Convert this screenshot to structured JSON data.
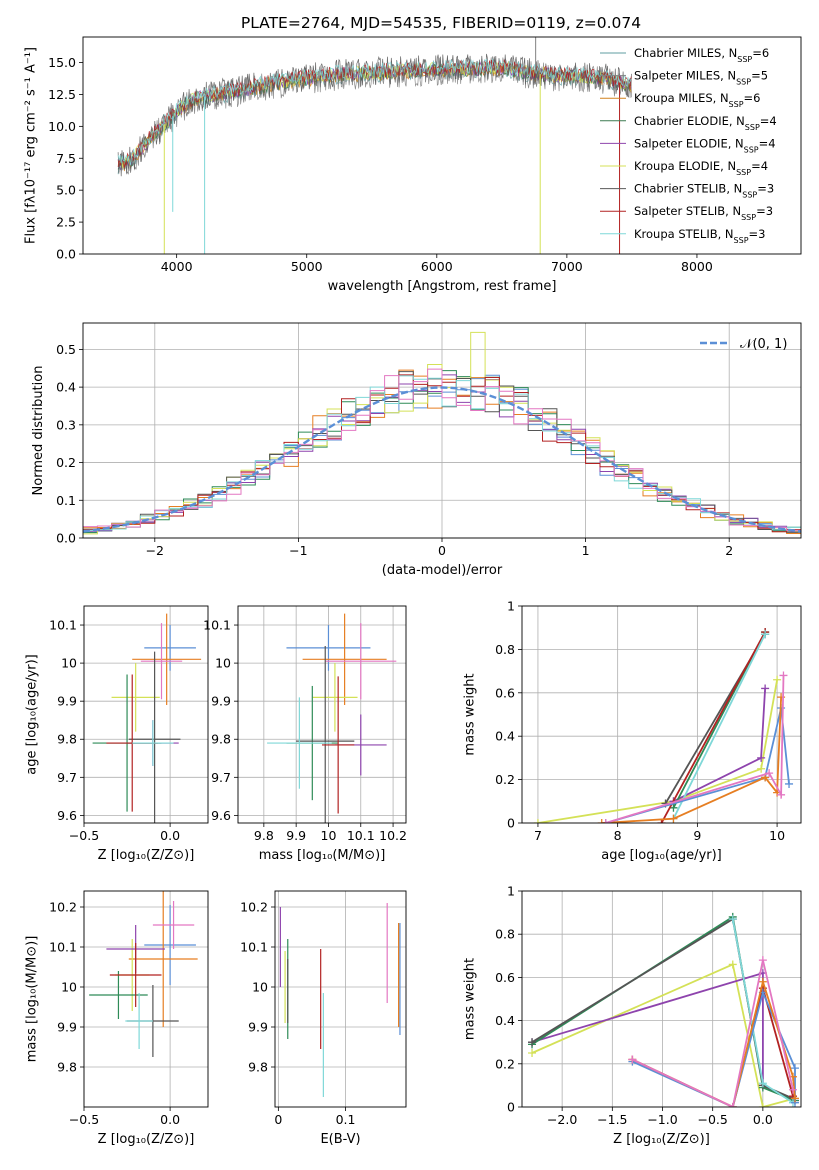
{
  "title": "PLATE=2764, MJD=54535, FIBERID=0119, z=0.074",
  "chart_data": [
    {
      "id": "spectrum",
      "type": "line",
      "xlabel": "wavelength [Angstrom, rest frame]",
      "ylabel": "Flux [fλ10⁻¹⁷ erg cm⁻² s⁻¹ A⁻¹]",
      "xlim": [
        3280,
        8800
      ],
      "ylim": [
        0,
        17
      ],
      "xticks": [
        4000,
        5000,
        6000,
        7000,
        8000
      ],
      "yticks": [
        0.0,
        2.5,
        5.0,
        7.5,
        10.0,
        12.5,
        15.0
      ],
      "ytick_labels": [
        "0.0",
        "2.5",
        "5.0",
        "7.5",
        "10.0",
        "12.5",
        "15.0"
      ],
      "grid": false,
      "legend_position": "top-right",
      "series": [
        {
          "name": "Chabrier MILES, N_SSP=6",
          "label": "Chabrier MILES, N",
          "sub": "SSP",
          "tail": "=6",
          "color": "#5f9ea0"
        },
        {
          "name": "Salpeter MILES, N_SSP=5",
          "label": "Salpeter MILES, N",
          "sub": "SSP",
          "tail": "=5",
          "color": "#808080"
        },
        {
          "name": "Kroupa MILES, N_SSP=6",
          "label": "Kroupa MILES, N",
          "sub": "SSP",
          "tail": "=6",
          "color": "#d2821e"
        },
        {
          "name": "Chabrier ELODIE, N_SSP=4",
          "label": "Chabrier ELODIE, N",
          "sub": "SSP",
          "tail": "=4",
          "color": "#3c7a50"
        },
        {
          "name": "Salpeter ELODIE, N_SSP=4",
          "label": "Salpeter ELODIE, N",
          "sub": "SSP",
          "tail": "=4",
          "color": "#8e44ad"
        },
        {
          "name": "Kroupa ELODIE, N_SSP=4",
          "label": "Kroupa ELODIE, N",
          "sub": "SSP",
          "tail": "=4",
          "color": "#d4e157"
        },
        {
          "name": "Chabrier STELIB, N_SSP=3",
          "label": "Chabrier STELIB, N",
          "sub": "SSP",
          "tail": "=3",
          "color": "#5a5a5a"
        },
        {
          "name": "Salpeter STELIB, N_SSP=3",
          "label": "Salpeter STELIB, N",
          "sub": "SSP",
          "tail": "=3",
          "color": "#b22222"
        },
        {
          "name": "Kroupa STELIB, N_SSP=3",
          "label": "Kroupa STELIB, N",
          "sub": "SSP",
          "tail": "=3",
          "color": "#7fd8d8"
        }
      ],
      "continuum": {
        "wavelength": [
          3550,
          3650,
          3750,
          3850,
          3950,
          4050,
          4150,
          4300,
          4500,
          4700,
          4900,
          5100,
          5300,
          5500,
          5700,
          5900,
          6100,
          6300,
          6500,
          6700,
          6900,
          7100,
          7300,
          7500
        ],
        "flux": [
          7.0,
          7.3,
          8.5,
          9.6,
          10.6,
          11.6,
          12.2,
          12.5,
          12.8,
          13.3,
          13.6,
          13.9,
          14.1,
          14.2,
          14.3,
          14.4,
          14.5,
          14.5,
          14.6,
          14.2,
          14.0,
          13.9,
          13.7,
          13.2
        ]
      }
    },
    {
      "id": "residuals",
      "type": "histogram",
      "xlabel": "(data-model)/error",
      "ylabel": "Normed distribution",
      "xlim": [
        -2.5,
        2.5
      ],
      "ylim": [
        0,
        0.57
      ],
      "xticks": [
        -2,
        -1,
        0,
        1,
        2
      ],
      "xtick_labels": [
        "−2",
        "−1",
        "0",
        "1",
        "2"
      ],
      "yticks": [
        0.0,
        0.1,
        0.2,
        0.3,
        0.4,
        0.5
      ],
      "ytick_labels": [
        "0.0",
        "0.1",
        "0.2",
        "0.3",
        "0.4",
        "0.5"
      ],
      "grid": true,
      "bin_width": 0.1,
      "reference_label": "𝒩(0, 1)",
      "reference_color": "#5b8fd6",
      "legend_position": "top-right"
    },
    {
      "id": "age-vs-Z",
      "type": "errorbar",
      "xlabel": "Z [log₁₀(Z/Z⊙)]",
      "ylabel": "age  [log₁₀(age/yr)]",
      "xlim": [
        -0.5,
        0.22
      ],
      "ylim": [
        9.58,
        10.15
      ],
      "xticks": [
        -0.5,
        0.0
      ],
      "xtick_labels": [
        "−0.5",
        "0.0"
      ],
      "yticks": [
        9.6,
        9.7,
        9.8,
        9.9,
        10.0,
        10.1
      ],
      "grid": true,
      "points": [
        {
          "x": 0.0,
          "xerr": 0.15,
          "y": 10.04,
          "yerr": 0.06,
          "color": "#5b8fd6"
        },
        {
          "x": -0.02,
          "xerr": 0.2,
          "y": 10.01,
          "yerr": 0.12,
          "color": "#e67e22"
        },
        {
          "x": -0.05,
          "xerr": 0.12,
          "y": 10.005,
          "yerr": 0.1,
          "color": "#e377c2"
        },
        {
          "x": -0.2,
          "xerr": 0.14,
          "y": 9.91,
          "yerr": 0.09,
          "color": "#d4e157"
        },
        {
          "x": -0.1,
          "xerr": 0.15,
          "y": 9.79,
          "yerr": 0.06,
          "color": "#8e44ad"
        },
        {
          "x": -0.25,
          "xerr": 0.2,
          "y": 9.79,
          "yerr": 0.18,
          "color": "#2e8b57"
        },
        {
          "x": -0.09,
          "xerr": 0.15,
          "y": 9.8,
          "yerr": 0.23,
          "color": "#555555"
        },
        {
          "x": -0.22,
          "xerr": 0.15,
          "y": 9.79,
          "yerr": 0.18,
          "color": "#b22222"
        },
        {
          "x": -0.1,
          "xerr": 0.12,
          "y": 9.79,
          "yerr": 0.06,
          "color": "#7fd8d8"
        }
      ]
    },
    {
      "id": "age-vs-mass",
      "type": "errorbar",
      "xlabel": "mass [log₁₀(M/M⊙)]",
      "ylabel": "",
      "xlim": [
        9.72,
        10.24
      ],
      "ylim": [
        9.58,
        10.15
      ],
      "xticks": [
        9.8,
        9.9,
        10.0,
        10.1,
        10.2
      ],
      "yticks": [
        9.6,
        9.7,
        9.8,
        9.9,
        10.0,
        10.1
      ],
      "grid": true,
      "points": [
        {
          "x": 10.0,
          "xerr": 0.13,
          "y": 10.04,
          "yerr": 0.06,
          "color": "#5b8fd6"
        },
        {
          "x": 10.05,
          "xerr": 0.13,
          "y": 10.01,
          "yerr": 0.12,
          "color": "#e67e22"
        },
        {
          "x": 10.1,
          "xerr": 0.11,
          "y": 10.005,
          "yerr": 0.1,
          "color": "#e377c2"
        },
        {
          "x": 10.02,
          "xerr": 0.07,
          "y": 9.91,
          "yerr": 0.09,
          "color": "#d4e157"
        },
        {
          "x": 10.1,
          "xerr": 0.08,
          "y": 9.785,
          "yerr": 0.08,
          "color": "#8e44ad"
        },
        {
          "x": 9.95,
          "xerr": 0.08,
          "y": 9.79,
          "yerr": 0.15,
          "color": "#2e8b57"
        },
        {
          "x": 9.99,
          "xerr": 0.09,
          "y": 9.795,
          "yerr": 0.25,
          "color": "#555555"
        },
        {
          "x": 10.03,
          "xerr": 0.05,
          "y": 9.785,
          "yerr": 0.18,
          "color": "#b22222"
        },
        {
          "x": 9.91,
          "xerr": 0.1,
          "y": 9.79,
          "yerr": 0.12,
          "color": "#7fd8d8"
        }
      ]
    },
    {
      "id": "weight-vs-age",
      "type": "line",
      "xlabel": "age  [log₁₀(age/yr)]",
      "ylabel": "mass weight",
      "xlim": [
        6.8,
        10.3
      ],
      "ylim": [
        0,
        1.0
      ],
      "xticks": [
        7,
        8,
        9,
        10
      ],
      "yticks": [
        0.0,
        0.2,
        0.4,
        0.6,
        0.8,
        1.0
      ],
      "grid": true,
      "series": [
        {
          "color": "#d4e157",
          "x": [
            7.0,
            8.7,
            9.8,
            10.0
          ],
          "y": [
            0.0,
            0.1,
            0.25,
            0.66
          ]
        },
        {
          "color": "#8e44ad",
          "x": [
            8.7,
            9.8,
            9.85
          ],
          "y": [
            0.1,
            0.3,
            0.62
          ]
        },
        {
          "color": "#2e8b57",
          "x": [
            8.7,
            9.85
          ],
          "y": [
            0.07,
            0.88
          ]
        },
        {
          "color": "#555555",
          "x": [
            8.6,
            9.85
          ],
          "y": [
            0.09,
            0.87
          ]
        },
        {
          "color": "#b22222",
          "x": [
            8.55,
            9.85
          ],
          "y": [
            0.0,
            0.88
          ]
        },
        {
          "color": "#7fd8d8",
          "x": [
            8.7,
            9.85
          ],
          "y": [
            0.02,
            0.87
          ]
        },
        {
          "color": "#5b8fd6",
          "x": [
            7.85,
            9.85,
            10.05,
            10.15
          ],
          "y": [
            0.0,
            0.21,
            0.53,
            0.18
          ]
        },
        {
          "color": "#e67e22",
          "x": [
            7.8,
            8.7,
            9.85,
            10.0,
            10.05
          ],
          "y": [
            0.0,
            0.02,
            0.21,
            0.14,
            0.58
          ]
        },
        {
          "color": "#e377c2",
          "x": [
            7.85,
            9.9,
            10.05,
            10.08
          ],
          "y": [
            0.0,
            0.23,
            0.13,
            0.68
          ]
        }
      ]
    },
    {
      "id": "mass-vs-Z",
      "type": "errorbar",
      "xlabel": "Z [log₁₀(Z/Z⊙)]",
      "ylabel": "mass [log₁₀(M/M⊙)]",
      "xlim": [
        -0.5,
        0.22
      ],
      "ylim": [
        9.7,
        10.24
      ],
      "xticks": [
        -0.5,
        0.0
      ],
      "xtick_labels": [
        "−0.5",
        "0.0"
      ],
      "yticks": [
        9.8,
        9.9,
        10.0,
        10.1,
        10.2
      ],
      "grid": true,
      "points": [
        {
          "x": 0.0,
          "xerr": 0.15,
          "y": 10.105,
          "yerr": 0.1,
          "color": "#5b8fd6"
        },
        {
          "x": -0.04,
          "xerr": 0.2,
          "y": 10.07,
          "yerr": 0.17,
          "color": "#e67e22"
        },
        {
          "x": 0.02,
          "xerr": 0.12,
          "y": 10.155,
          "yerr": 0.06,
          "color": "#e377c2"
        },
        {
          "x": -0.22,
          "xerr": 0.1,
          "y": 10.03,
          "yerr": 0.09,
          "color": "#d4e157"
        },
        {
          "x": -0.2,
          "xerr": 0.17,
          "y": 10.095,
          "yerr": 0.06,
          "color": "#8e44ad"
        },
        {
          "x": -0.3,
          "xerr": 0.17,
          "y": 9.98,
          "yerr": 0.06,
          "color": "#2e8b57"
        },
        {
          "x": -0.1,
          "xerr": 0.15,
          "y": 9.915,
          "yerr": 0.09,
          "color": "#555555"
        },
        {
          "x": -0.2,
          "xerr": 0.15,
          "y": 10.03,
          "yerr": 0.08,
          "color": "#b22222"
        },
        {
          "x": -0.18,
          "xerr": 0.08,
          "y": 9.915,
          "yerr": 0.07,
          "color": "#7fd8d8"
        }
      ]
    },
    {
      "id": "mass-vs-EBV",
      "type": "errorbar",
      "xlabel": "E(B-V)",
      "ylabel": "",
      "xlim": [
        -0.005,
        0.19
      ],
      "ylim": [
        9.7,
        10.24
      ],
      "xticks": [
        0.0,
        0.1
      ],
      "yticks": [
        9.8,
        9.9,
        10.0,
        10.1,
        10.2
      ],
      "grid": true,
      "points": [
        {
          "x": 0.181,
          "xerr": 0,
          "y": 10.02,
          "yerr": 0.14,
          "color": "#5b8fd6"
        },
        {
          "x": 0.179,
          "xerr": 0,
          "y": 10.03,
          "yerr": 0.13,
          "color": "#e67e22"
        },
        {
          "x": 0.162,
          "xerr": 0,
          "y": 10.085,
          "yerr": 0.125,
          "color": "#e377c2"
        },
        {
          "x": 0.01,
          "xerr": 0,
          "y": 10.0,
          "yerr": 0.09,
          "color": "#d4e157"
        },
        {
          "x": 0.003,
          "xerr": 0,
          "y": 10.1,
          "yerr": 0.1,
          "color": "#8e44ad"
        },
        {
          "x": 0.014,
          "xerr": 0,
          "y": 9.995,
          "yerr": 0.125,
          "color": "#2e8b57"
        },
        {
          "x": 0.014,
          "xerr": 0,
          "y": 9.99,
          "yerr": 0.08,
          "color": "#555555"
        },
        {
          "x": 0.063,
          "xerr": 0,
          "y": 9.97,
          "yerr": 0.125,
          "color": "#b22222"
        },
        {
          "x": 0.067,
          "xerr": 0,
          "y": 9.855,
          "yerr": 0.13,
          "color": "#7fd8d8"
        }
      ]
    },
    {
      "id": "weight-vs-Z",
      "type": "line",
      "xlabel": "Z [log₁₀(Z/Z⊙)]",
      "ylabel": "mass weight",
      "xlim": [
        -2.4,
        0.38
      ],
      "ylim": [
        0,
        1.0
      ],
      "xticks": [
        -2.0,
        -1.5,
        -1.0,
        -0.5,
        0.0
      ],
      "xtick_labels": [
        "−2.0",
        "−1.5",
        "−1.0",
        "−0.5",
        "0.0"
      ],
      "yticks": [
        0.0,
        0.2,
        0.4,
        0.6,
        0.8,
        1.0
      ],
      "grid": true,
      "series": [
        {
          "color": "#d4e157",
          "x": [
            -2.3,
            -0.3,
            0.0,
            0.32
          ],
          "y": [
            0.25,
            0.66,
            0.0,
            0.04
          ]
        },
        {
          "color": "#8e44ad",
          "x": [
            -2.3,
            0.0,
            0.0,
            0.32
          ],
          "y": [
            0.3,
            0.62,
            0.1,
            0.03
          ]
        },
        {
          "color": "#2e8b57",
          "x": [
            -2.3,
            -0.3,
            0.0,
            0.32
          ],
          "y": [
            0.29,
            0.88,
            0.09,
            0.03
          ]
        },
        {
          "color": "#555555",
          "x": [
            -2.3,
            -0.3,
            0.0,
            0.3
          ],
          "y": [
            0.3,
            0.87,
            0.1,
            0.04
          ]
        },
        {
          "color": "#b22222",
          "x": [
            -1.3,
            -0.3,
            0.0,
            0.3
          ],
          "y": [
            0.22,
            0.0,
            0.55,
            0.05
          ]
        },
        {
          "color": "#7fd8d8",
          "x": [
            -0.3,
            0.0,
            0.3
          ],
          "y": [
            0.87,
            0.11,
            0.02
          ]
        },
        {
          "color": "#5b8fd6",
          "x": [
            -1.3,
            -0.3,
            0.0,
            0.32,
            0.32
          ],
          "y": [
            0.21,
            0.0,
            0.53,
            0.18,
            0.02
          ]
        },
        {
          "color": "#e67e22",
          "x": [
            -1.3,
            -0.3,
            0.0,
            0.3,
            0.32
          ],
          "y": [
            0.22,
            0.0,
            0.58,
            0.14,
            0.04
          ]
        },
        {
          "color": "#e377c2",
          "x": [
            -1.3,
            -0.3,
            0.0,
            0.3
          ],
          "y": [
            0.22,
            0.0,
            0.68,
            0.08
          ]
        }
      ]
    }
  ]
}
